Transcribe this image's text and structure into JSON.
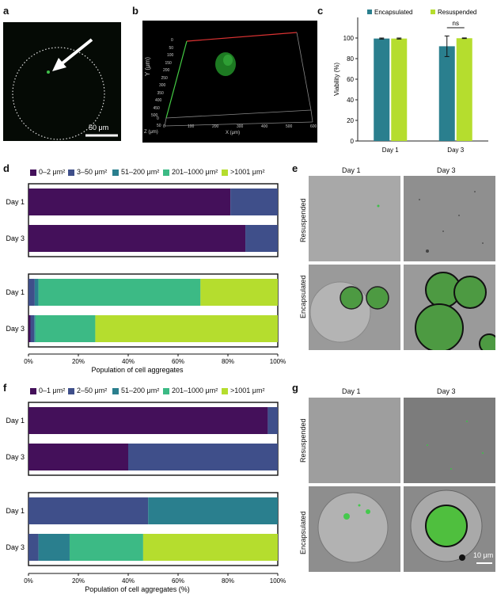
{
  "panels": {
    "a": {
      "letter": "a",
      "scale_label": "50 μm"
    },
    "b": {
      "letter": "b",
      "x_ticks": [
        "0",
        "100",
        "200",
        "300",
        "400",
        "500",
        "600"
      ],
      "x_label": "X (μm)",
      "y_ticks": [
        "0",
        "50",
        "100",
        "150",
        "200",
        "250",
        "300",
        "350",
        "400",
        "450",
        "500"
      ],
      "y_label": "Y (μm)",
      "z_label": "Z (μm)",
      "z_ticks": [
        "0",
        "50"
      ]
    },
    "c": {
      "letter": "c"
    },
    "d": {
      "letter": "d"
    },
    "e": {
      "letter": "e",
      "col_day1": "Day 1",
      "col_day3": "Day 3",
      "row_resuspended": "Resuspended",
      "row_encapsulated": "Encapsulated"
    },
    "f": {
      "letter": "f"
    },
    "g": {
      "letter": "g",
      "col_day1": "Day 1",
      "col_day3": "Day 3",
      "row_resuspended": "Resuspended",
      "row_encapsulated": "Encapsulated",
      "scale_label": "10 μm"
    }
  },
  "colors": {
    "encapsulated": "#2a7f8e",
    "resuspended": "#b5dd2e",
    "c1": "#44105a",
    "c2": "#3f4f8a",
    "c3": "#2a7f8e",
    "c4": "#3cba85",
    "c5": "#b5dd2e"
  },
  "chart_data": [
    {
      "panel": "c",
      "type": "bar",
      "categories": [
        "Day 1",
        "Day 3"
      ],
      "series": [
        {
          "name": "Encapsulated",
          "values": [
            99.5,
            92
          ],
          "errors": [
            0.5,
            10
          ]
        },
        {
          "name": "Resuspended",
          "values": [
            99.5,
            99.8
          ],
          "errors": [
            0.5,
            0.3
          ]
        }
      ],
      "ylabel": "Viability (%)",
      "yticks": [
        0,
        20,
        40,
        60,
        80,
        100
      ],
      "ylim": [
        0,
        120
      ],
      "annotation": "ns"
    },
    {
      "panel": "d",
      "type": "bar",
      "orientation": "horizontal-stacked",
      "legend": [
        "0–2 μm²",
        "3–50 μm²",
        "51–200 μm²",
        "201–1000 μm²",
        ">1001 μm²"
      ],
      "groups": [
        {
          "rows": [
            {
              "label": "Day 1",
              "values": [
                81,
                19,
                0,
                0,
                0
              ]
            },
            {
              "label": "Day 3",
              "values": [
                87,
                13,
                0,
                0,
                0
              ]
            }
          ]
        },
        {
          "rows": [
            {
              "label": "Day 1",
              "values": [
                0,
                2.5,
                1.5,
                65,
                31
              ]
            },
            {
              "label": "Day 3",
              "values": [
                0.8,
                1.5,
                0.5,
                24,
                73.2
              ]
            }
          ]
        }
      ],
      "xticks": [
        "0%",
        "20%",
        "40%",
        "60%",
        "80%",
        "100%"
      ],
      "xlabel": "Population of cell aggregates"
    },
    {
      "panel": "f",
      "type": "bar",
      "orientation": "horizontal-stacked",
      "legend": [
        "0–1 μm²",
        "2–50 μm²",
        "51–200 μm²",
        "201–1000 μm²",
        ">1001 μm²"
      ],
      "groups": [
        {
          "rows": [
            {
              "label": "Day 1",
              "values": [
                96,
                4,
                0,
                0,
                0
              ]
            },
            {
              "label": "Day 3",
              "values": [
                40,
                60,
                0,
                0,
                0
              ]
            }
          ]
        },
        {
          "rows": [
            {
              "label": "Day 1",
              "values": [
                0,
                48,
                52,
                0,
                0
              ]
            },
            {
              "label": "Day 3",
              "values": [
                0,
                4,
                12.5,
                29.5,
                54
              ]
            }
          ]
        }
      ],
      "xticks": [
        "0%",
        "20%",
        "40%",
        "60%",
        "80%",
        "100%"
      ],
      "xlabel": "Population of cell aggregates (%)"
    }
  ]
}
